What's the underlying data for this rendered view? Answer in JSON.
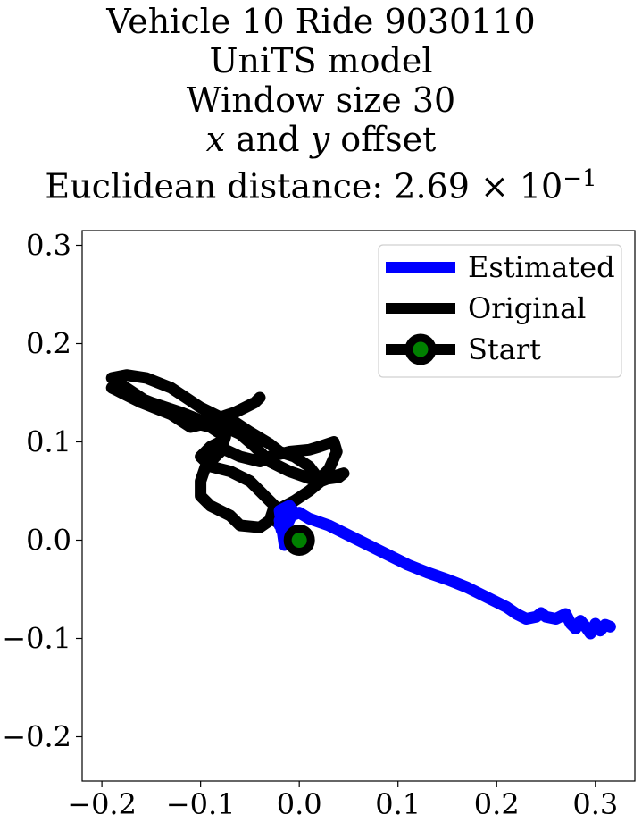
{
  "chart_data": {
    "type": "line",
    "title_lines": [
      "Vehicle 10 Ride 9030110",
      "UniTS model",
      "Window size 30"
    ],
    "title_offset_parts": {
      "x": "x",
      "and": " and ",
      "y": "y",
      "rest": " offset"
    },
    "title_distance": "Euclidean distance: 2.69 × 10",
    "title_distance_exp": "−1",
    "xlim": [
      -0.22,
      0.34
    ],
    "ylim": [
      -0.245,
      0.315
    ],
    "xticks": [
      -0.2,
      -0.1,
      0.0,
      0.1,
      0.2,
      0.3
    ],
    "xtick_labels": [
      "−0.2",
      "−0.1",
      "0.0",
      "0.1",
      "0.2",
      "0.3"
    ],
    "yticks": [
      -0.2,
      -0.1,
      0.0,
      0.1,
      0.2,
      0.3
    ],
    "ytick_labels": [
      "−0.2",
      "−0.1",
      "0.0",
      "0.1",
      "0.2",
      "0.3"
    ],
    "legend_position": "top-right",
    "series": [
      {
        "name": "Estimated",
        "color": "#0000ff",
        "x": [
          0.0,
          -0.005,
          -0.012,
          -0.02,
          -0.018,
          -0.01,
          -0.015,
          -0.02,
          -0.01,
          -0.005,
          -0.012,
          -0.02,
          -0.015,
          -0.008,
          0.0,
          0.01,
          0.03,
          0.05,
          0.07,
          0.09,
          0.11,
          0.13,
          0.15,
          0.17,
          0.19,
          0.21,
          0.22,
          0.23,
          0.24,
          0.245,
          0.25,
          0.26,
          0.27,
          0.275,
          0.28,
          0.285,
          0.29,
          0.295,
          0.3,
          0.305,
          0.31,
          0.315
        ],
        "y": [
          0.0,
          0.005,
          0.012,
          0.02,
          0.01,
          0.0,
          -0.005,
          0.03,
          0.035,
          0.028,
          0.022,
          0.015,
          0.01,
          0.025,
          0.028,
          0.022,
          0.015,
          0.005,
          -0.005,
          -0.015,
          -0.025,
          -0.033,
          -0.04,
          -0.048,
          -0.058,
          -0.068,
          -0.075,
          -0.08,
          -0.078,
          -0.074,
          -0.078,
          -0.08,
          -0.075,
          -0.085,
          -0.09,
          -0.082,
          -0.088,
          -0.095,
          -0.085,
          -0.092,
          -0.086,
          -0.088
        ]
      },
      {
        "name": "Original",
        "color": "#000000",
        "x": [
          0.0,
          -0.01,
          -0.025,
          -0.02,
          -0.005,
          0.01,
          0.022,
          0.035,
          0.045,
          0.04,
          0.025,
          0.01,
          -0.01,
          -0.03,
          -0.045,
          -0.06,
          -0.075,
          -0.1,
          -0.12,
          -0.15,
          -0.175,
          -0.19,
          -0.18,
          -0.16,
          -0.13,
          -0.11,
          -0.09,
          -0.075,
          -0.08,
          -0.095,
          -0.1,
          -0.1,
          -0.09,
          -0.07,
          -0.06,
          -0.04,
          -0.03,
          -0.025,
          -0.035,
          -0.05,
          -0.07,
          -0.09,
          -0.1,
          -0.09,
          -0.08,
          -0.075,
          -0.06,
          -0.04,
          -0.03,
          -0.01,
          0.01,
          0.02,
          0.035,
          0.038,
          0.03,
          0.02,
          0.01,
          -0.005,
          -0.02,
          -0.03,
          -0.05,
          -0.065,
          -0.08,
          -0.1,
          -0.115,
          -0.13,
          -0.155,
          -0.175,
          -0.19,
          -0.18,
          -0.165,
          -0.15,
          -0.13,
          -0.11,
          -0.09,
          -0.08,
          -0.065,
          -0.055,
          -0.045,
          -0.04
        ],
        "y": [
          0.0,
          0.01,
          0.02,
          0.032,
          0.04,
          0.05,
          0.06,
          0.065,
          0.068,
          0.064,
          0.062,
          0.063,
          0.07,
          0.08,
          0.095,
          0.108,
          0.115,
          0.122,
          0.13,
          0.14,
          0.15,
          0.155,
          0.15,
          0.14,
          0.128,
          0.12,
          0.115,
          0.105,
          0.09,
          0.075,
          0.06,
          0.045,
          0.035,
          0.025,
          0.015,
          0.013,
          0.02,
          0.035,
          0.045,
          0.06,
          0.07,
          0.075,
          0.085,
          0.095,
          0.1,
          0.092,
          0.085,
          0.08,
          0.085,
          0.09,
          0.092,
          0.095,
          0.1,
          0.09,
          0.072,
          0.062,
          0.075,
          0.085,
          0.09,
          0.098,
          0.11,
          0.12,
          0.125,
          0.135,
          0.145,
          0.155,
          0.165,
          0.168,
          0.165,
          0.158,
          0.148,
          0.138,
          0.128,
          0.115,
          0.12,
          0.125,
          0.13,
          0.135,
          0.14,
          0.145
        ]
      }
    ],
    "start_marker": {
      "name": "Start",
      "x": 0.0,
      "y": 0.0,
      "edge_color": "#000000",
      "face_color": "#008000"
    }
  }
}
